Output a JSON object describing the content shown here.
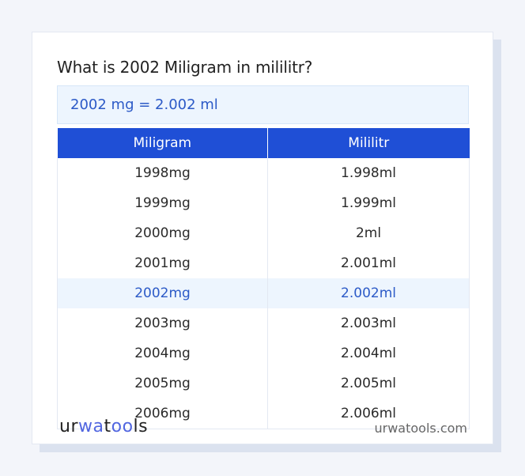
{
  "card": {
    "title": "What is 2002 Miligram in mililitr?",
    "result": "2002 mg = 2.002 ml"
  },
  "table": {
    "headers": [
      "Miligram",
      "Mililitr"
    ],
    "rows": [
      [
        "1998mg",
        "1.998ml"
      ],
      [
        "1999mg",
        "1.999ml"
      ],
      [
        "2000mg",
        "2ml"
      ],
      [
        "2001mg",
        "2.001ml"
      ],
      [
        "2002mg",
        "2.002ml"
      ],
      [
        "2003mg",
        "2.003ml"
      ],
      [
        "2004mg",
        "2.004ml"
      ],
      [
        "2005mg",
        "2.005ml"
      ],
      [
        "2006mg",
        "2.006ml"
      ]
    ],
    "highlighted_row": 4
  },
  "footer": {
    "logo_part1": "ur",
    "logo_part2": "wa",
    "logo_part3": "t",
    "logo_part4": "oo",
    "logo_part5": "ls",
    "site": "urwatools.com"
  },
  "colors": {
    "accent": "#1f4fd6",
    "highlight_text": "#2c5ac7",
    "highlight_bg": "#edf5fe"
  }
}
